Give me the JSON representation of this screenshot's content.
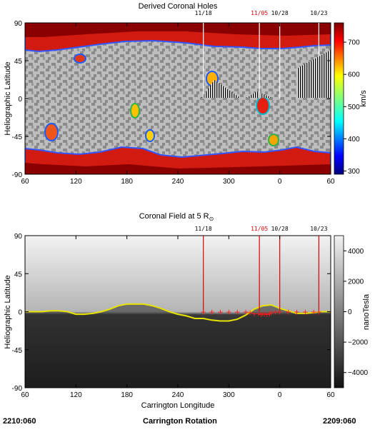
{
  "footer": {
    "left": "2210:060",
    "center": "Carrington Rotation",
    "right": "2209:060"
  },
  "chart_data": [
    {
      "type": "heatmap",
      "title": "Derived Coronal Holes",
      "xlabel": "",
      "ylabel": "Heliographic Latitude",
      "x_ticks": [
        "60",
        "120",
        "180",
        "240",
        "300",
        "0",
        "60"
      ],
      "y_ticks": [
        "90",
        "45",
        "0",
        "-45",
        "-90"
      ],
      "ylim": [
        -90,
        90
      ],
      "colorbar": {
        "label": "km/s",
        "range": [
          290,
          760
        ],
        "ticks": [
          "700",
          "600",
          "500",
          "400",
          "300"
        ]
      },
      "date_markers": [
        {
          "label": "11/18",
          "longitude": 270,
          "color": "#000000"
        },
        {
          "label": "11/05",
          "longitude": 336,
          "color": "#dd0000"
        },
        {
          "label": "10/28",
          "longitude": 0,
          "color": "#000000"
        },
        {
          "label": "10/23",
          "longitude": 46,
          "color": "#000000"
        }
      ],
      "regions": [
        {
          "name": "north polar hole",
          "lat_range": [
            60,
            90
          ],
          "speed": "650-760"
        },
        {
          "name": "south polar hole",
          "lat_range": [
            -90,
            -60
          ],
          "speed": "650-760"
        },
        {
          "name": "low-latitude hole",
          "lon_range": [
            320,
            350
          ],
          "lat_range": [
            -15,
            10
          ],
          "speed": "600-720"
        }
      ]
    },
    {
      "type": "line",
      "title": "Coronal Field at 5 R",
      "title_symbol": "⊙",
      "xlabel": "Carrington Longitude",
      "ylabel": "Heliographic Latitude",
      "x_ticks": [
        "60",
        "120",
        "180",
        "240",
        "300",
        "0",
        "60"
      ],
      "y_ticks": [
        "90",
        "45",
        "0",
        "-45",
        "-90"
      ],
      "ylim": [
        -90,
        90
      ],
      "colorbar": {
        "label": "nanoTesla",
        "range": [
          -5000,
          5000
        ],
        "ticks": [
          "4000",
          "2000",
          "0",
          "−2000",
          "−4000"
        ]
      },
      "date_markers": [
        {
          "label": "11/18",
          "longitude": 270,
          "color": "#000000"
        },
        {
          "label": "11/05",
          "longitude": 336,
          "color": "#dd0000"
        },
        {
          "label": "10/28",
          "longitude": 0,
          "color": "#000000"
        },
        {
          "label": "10/23",
          "longitude": 46,
          "color": "#000000"
        }
      ],
      "neutral_line": {
        "x": [
          60,
          80,
          90,
          100,
          110,
          120,
          130,
          140,
          150,
          160,
          170,
          180,
          190,
          200,
          210,
          220,
          230,
          240,
          250,
          260,
          270,
          280,
          290,
          300,
          310,
          320,
          330,
          340,
          350,
          0,
          10,
          20,
          30,
          40,
          50,
          60
        ],
        "y": [
          0,
          0,
          1,
          1,
          0,
          -3,
          -3,
          -2,
          0,
          3,
          7,
          9,
          9,
          9,
          7,
          4,
          0,
          -3,
          -5,
          -8,
          -8,
          -10,
          -11,
          -11,
          -9,
          -4,
          3,
          7,
          8,
          4,
          1,
          -2,
          -2,
          -1,
          0,
          0
        ]
      },
      "trajectory": {
        "x": [
          270,
          280,
          290,
          300,
          310,
          320,
          325,
          330,
          335,
          338,
          340,
          342,
          345,
          348,
          350,
          355,
          0,
          10,
          20,
          30,
          40,
          46
        ],
        "y": [
          0,
          0,
          0,
          0,
          0,
          0,
          -1,
          -2,
          -2,
          -3,
          -2,
          -2,
          -3,
          -2,
          -1,
          0,
          0,
          0,
          0,
          0,
          0,
          0
        ]
      }
    }
  ]
}
